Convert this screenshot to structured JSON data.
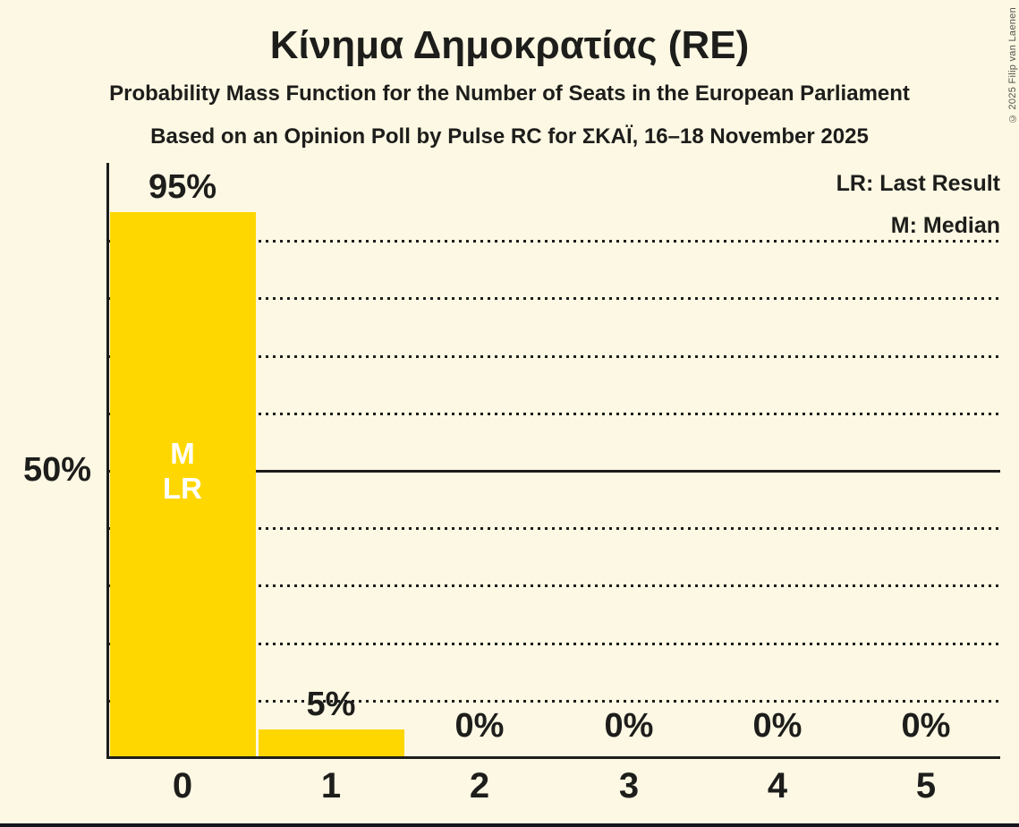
{
  "title": "Κίνημα Δημοκρατίας (RE)",
  "subtitle": "Probability Mass Function for the Number of Seats in the European Parliament",
  "source_line": "Based on an Opinion Poll by Pulse RC for ΣΚΑΪ, 16–18 November 2025",
  "copyright": "© 2025 Filip van Laenen",
  "legend": {
    "lr": "LR: Last Result",
    "m": "M: Median"
  },
  "colors": {
    "background": "#FCF8E3",
    "bar": "#FFD700",
    "text": "#1D1D1B",
    "annotation_text": "#FFFFFF",
    "bottom_strip": "#15151F"
  },
  "chart_data": {
    "type": "bar",
    "categories": [
      "0",
      "1",
      "2",
      "3",
      "4",
      "5"
    ],
    "values": [
      95,
      5,
      0,
      0,
      0,
      0
    ],
    "value_labels": [
      "95%",
      "5%",
      "0%",
      "0%",
      "0%",
      "0%"
    ],
    "y_axis_label": "50%",
    "ylim": [
      0,
      100
    ],
    "gridlines_pct": [
      10,
      20,
      30,
      40,
      50,
      60,
      70,
      80,
      90
    ],
    "solid_gridline_pct": 50,
    "grid": true,
    "legend_position": "top-right",
    "median_category": "0",
    "last_result_category": "0",
    "bar_annotations": [
      {
        "category": "0",
        "lines": [
          "M",
          "LR"
        ]
      }
    ]
  }
}
